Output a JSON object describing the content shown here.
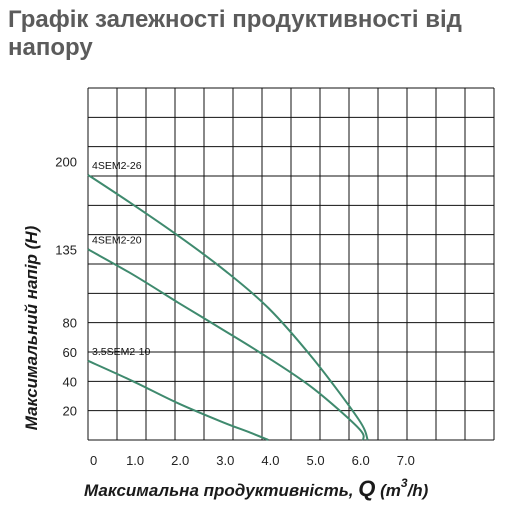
{
  "chart_data": {
    "type": "line",
    "title": "Графік залежності продуктивності від напору",
    "xlabel_text": "Максимальна продуктивність, ",
    "xlabel_symbol": "Q",
    "xlabel_unit_open": "(m",
    "xlabel_unit_sup": "3",
    "xlabel_unit_close": "/h)",
    "ylabel": "Максимальний напір (H)",
    "x_ticks": [
      "0",
      "1.0",
      "2.0",
      "3.0",
      "4.0",
      "5.0",
      "6.0",
      "7.0"
    ],
    "y_ticks": [
      {
        "label": "200",
        "value": 200
      },
      {
        "label": "135",
        "value": 135
      },
      {
        "label": "80",
        "value": 80
      },
      {
        "label": "60",
        "value": 60
      },
      {
        "label": "40",
        "value": 40
      },
      {
        "label": "20",
        "value": 20
      }
    ],
    "xlim": [
      0,
      9
    ],
    "grid": true,
    "line_color": "#3f8a6e",
    "series": [
      {
        "name": "4SEM2-26",
        "x": [
          0,
          1,
          2,
          3,
          4,
          5,
          6,
          6.2
        ],
        "y": [
          190,
          168,
          145,
          120,
          91,
          55,
          14,
          0
        ]
      },
      {
        "name": "4SEM2-20",
        "x": [
          0,
          1,
          2,
          3,
          4,
          5,
          6,
          6.1
        ],
        "y": [
          135,
          116,
          95,
          75,
          56,
          35,
          8,
          0
        ]
      },
      {
        "name": "3.5SEM2-10",
        "x": [
          0,
          1,
          2,
          3,
          3.6,
          4.0
        ],
        "y": [
          54,
          40,
          25,
          12,
          5,
          0
        ]
      }
    ]
  }
}
